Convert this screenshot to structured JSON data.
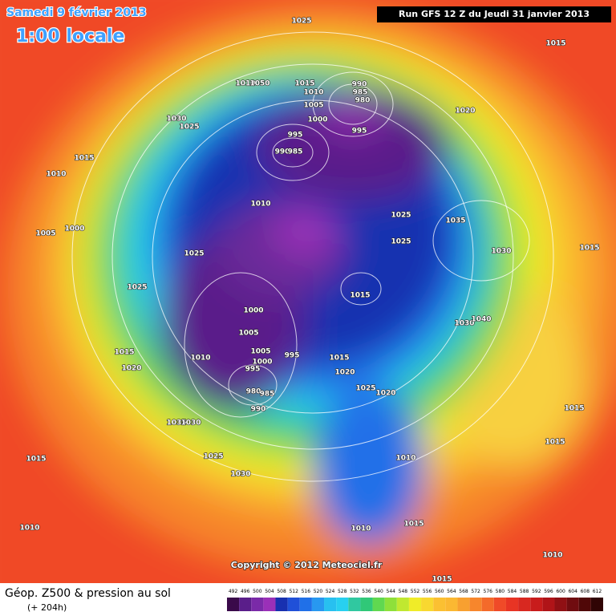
{
  "header": {
    "title": "Samedi 9 février 2013",
    "subtitle": "1:00 locale",
    "run": "Run GFS 12 Z du Jeudi 31 janvier 2013"
  },
  "map": {
    "pressure_labels": [
      1025,
      1015,
      1010,
      1050,
      1015,
      1010,
      990,
      985,
      980,
      1005,
      1000,
      1020,
      995,
      1030,
      1025,
      995,
      990,
      985,
      1015,
      1010,
      1010,
      1025,
      1035,
      1005,
      1000,
      1025,
      1030,
      1015,
      1025,
      1025,
      1015,
      1000,
      1030,
      1040,
      1005,
      1005,
      995,
      1015,
      1010,
      1000,
      1015,
      995,
      1020,
      1020,
      1025,
      1020,
      980,
      985,
      990,
      1015,
      1035,
      1030,
      1015,
      1025,
      1010,
      1030,
      1015,
      1010,
      1015,
      1010,
      1010,
      1015
    ]
  },
  "copyright": "Copyright © 2012 Meteociel.fr",
  "footer": {
    "title": "Géop. Z500 & pression au sol",
    "lead": "(+ 204h)"
  },
  "legend": {
    "ticks": [
      492,
      496,
      500,
      504,
      508,
      512,
      516,
      520,
      524,
      528,
      532,
      536,
      540,
      544,
      548,
      552,
      556,
      560,
      564,
      568,
      572,
      576,
      580,
      584,
      588,
      592,
      596,
      600,
      604,
      608,
      612
    ]
  }
}
